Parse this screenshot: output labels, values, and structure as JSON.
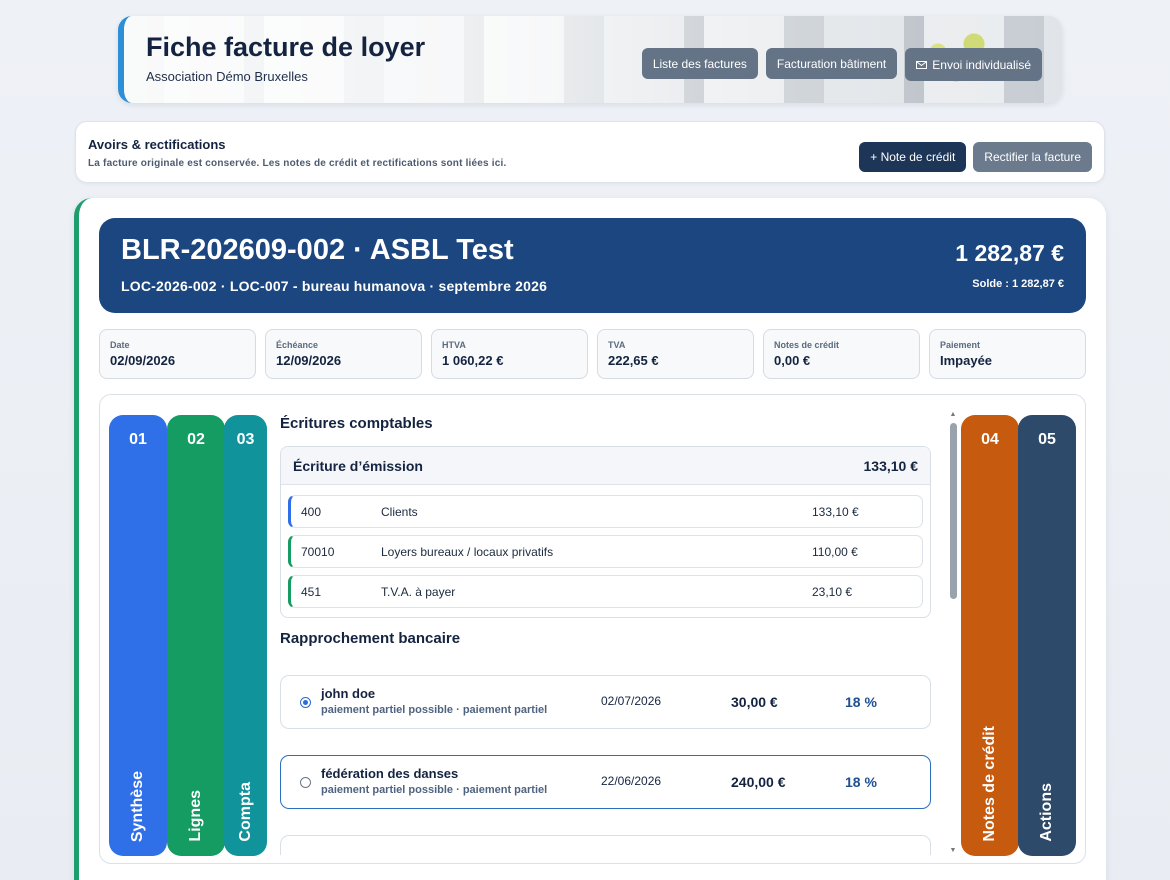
{
  "header": {
    "title": "Fiche facture de loyer",
    "subtitle": "Association Démo Bruxelles",
    "buttons": {
      "list": "Liste des factures",
      "building": "Facturation bâtiment",
      "send": "Envoi individualisé"
    }
  },
  "avoirs": {
    "title": "Avoirs & rectifications",
    "note": "La facture originale est conservée. Les notes de crédit et rectifications sont liées ici.",
    "credit_button": "+ Note de crédit",
    "rectify_button": "Rectifier la facture"
  },
  "invoice": {
    "title": "BLR-202609-002 · ASBL Test",
    "subtitle": "LOC-2026-002 · LOC-007 - bureau humanova · septembre 2026",
    "amount": "1 282,87 €",
    "balance": "Solde : 1 282,87 €"
  },
  "kpis": [
    {
      "label": "Date",
      "value": "02/09/2026"
    },
    {
      "label": "Échéance",
      "value": "12/09/2026"
    },
    {
      "label": "HTVA",
      "value": "1 060,22 €"
    },
    {
      "label": "TVA",
      "value": "222,65 €"
    },
    {
      "label": "Notes de crédit",
      "value": "0,00 €"
    },
    {
      "label": "Paiement",
      "value": "Impayée"
    }
  ],
  "tabs": [
    {
      "num": "01",
      "label": "Synthèse",
      "color": "#2f6fe8"
    },
    {
      "num": "02",
      "label": "Lignes",
      "color": "#159c62"
    },
    {
      "num": "03",
      "label": "Compta",
      "color": "#10939a"
    },
    {
      "num": "04",
      "label": "Notes de crédit",
      "color": "#c65a0e"
    },
    {
      "num": "05",
      "label": "Actions",
      "color": "#2e4a6a"
    }
  ],
  "ecritures": {
    "title": "Écritures comptables",
    "entry_title": "Écriture d’émission",
    "entry_total": "133,10 €",
    "rows": [
      {
        "account": "400",
        "label": "Clients",
        "amount": "133,10 €",
        "color": "#2f6fe8"
      },
      {
        "account": "70010",
        "label": "Loyers bureaux / locaux privatifs",
        "amount": "110,00 €",
        "color": "#159c62"
      },
      {
        "account": "451",
        "label": "T.V.A. à payer",
        "amount": "23,10 €",
        "color": "#159c62"
      }
    ]
  },
  "rapprochement": {
    "title": "Rapprochement bancaire",
    "rows": [
      {
        "name": "john doe",
        "desc": "paiement partiel possible · paiement partiel",
        "date": "02/07/2026",
        "amount": "30,00 €",
        "pct": "18 %"
      },
      {
        "name": "fédération des danses",
        "desc": "paiement partiel possible · paiement partiel",
        "date": "22/06/2026",
        "amount": "240,00 €",
        "pct": "18 %"
      }
    ]
  }
}
